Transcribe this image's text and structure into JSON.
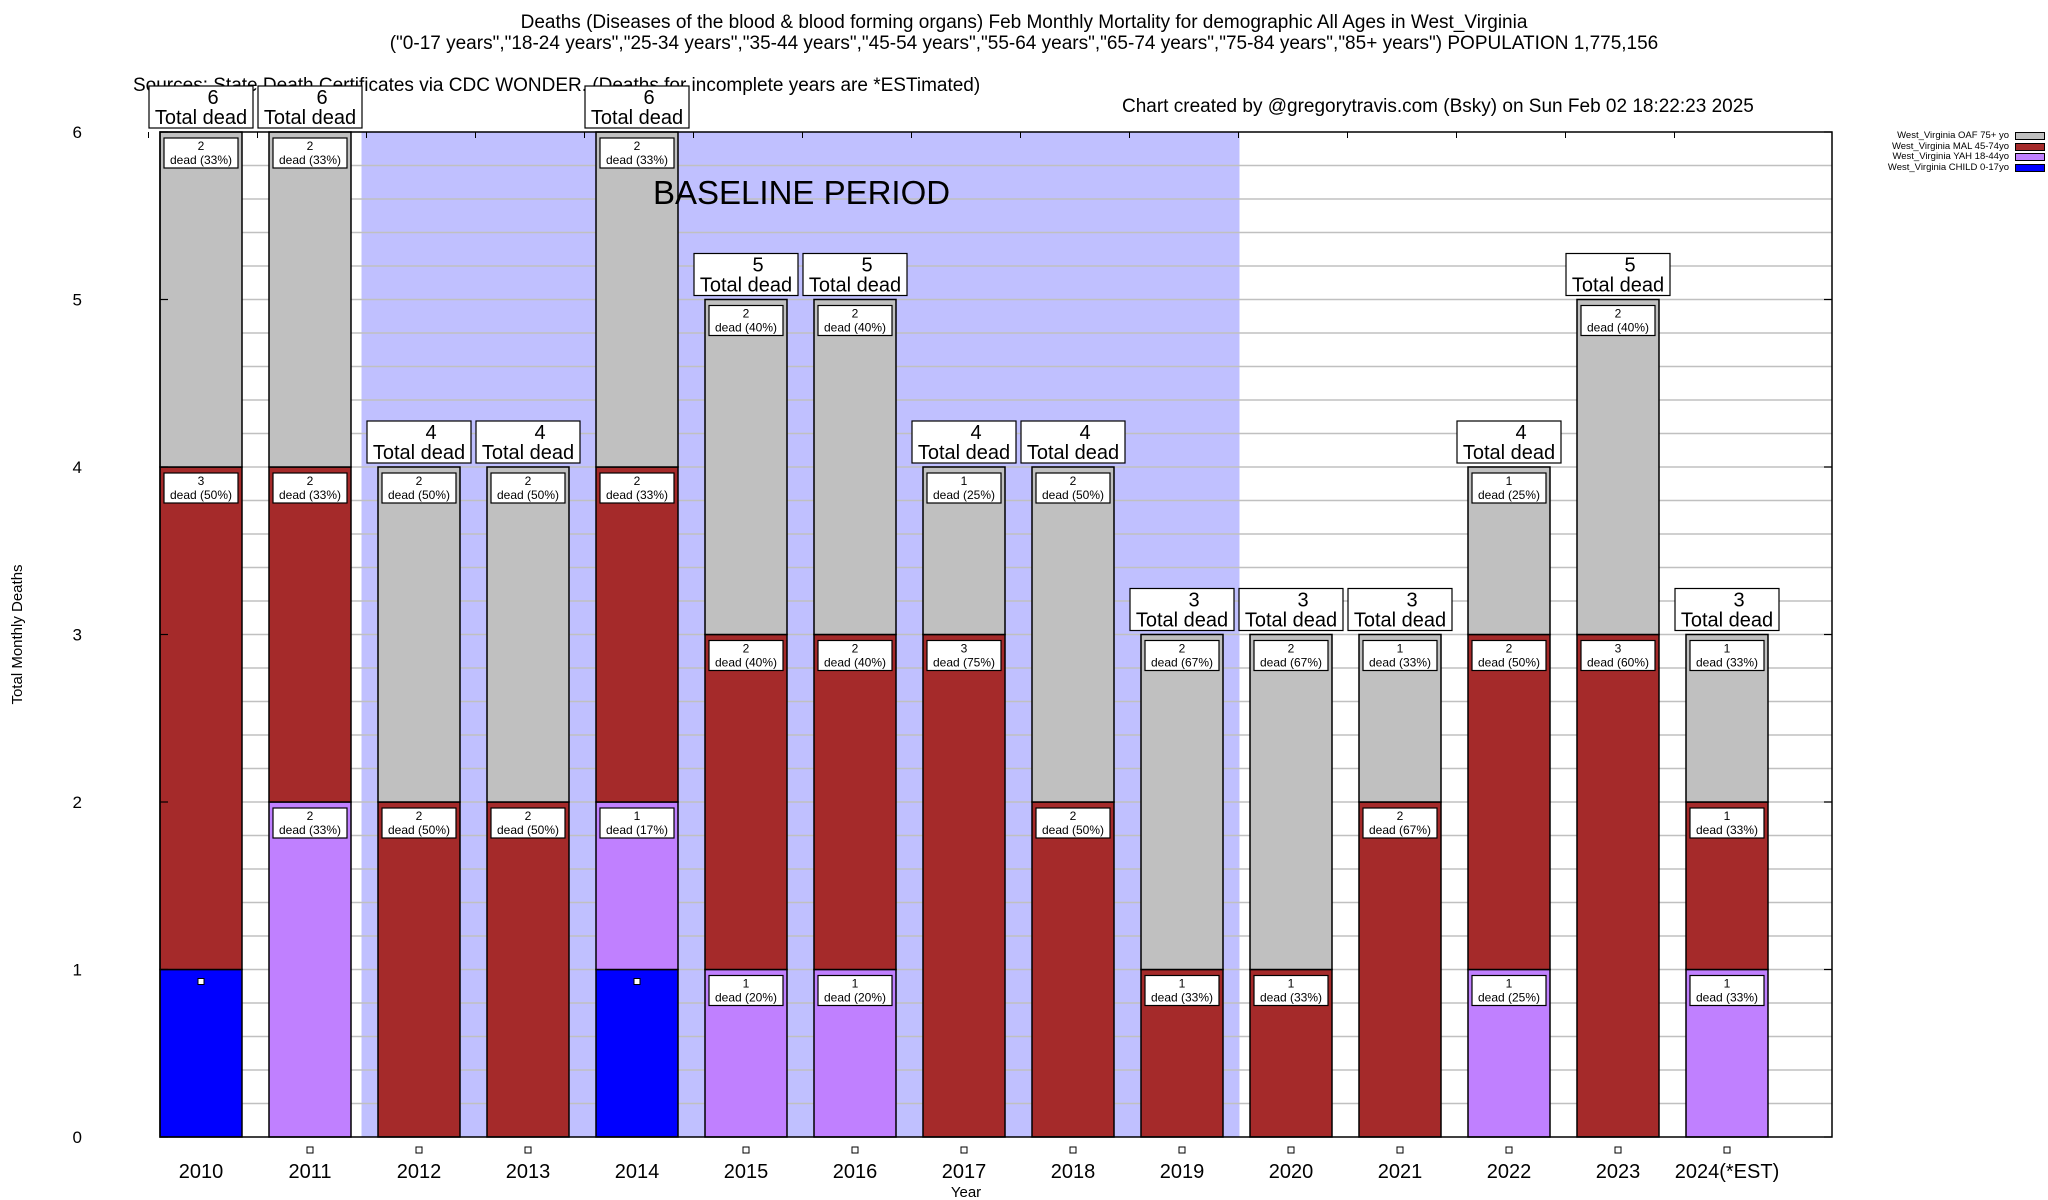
{
  "header": {
    "title": "Deaths (Diseases of the blood & blood forming organs) Feb Monthly Mortality for demographic All Ages in West_Virginia",
    "subtitle": "(\"0-17 years\",\"18-24 years\",\"25-34 years\",\"35-44 years\",\"45-54 years\",\"55-64 years\",\"65-74 years\",\"75-84 years\",\"85+ years\") POPULATION 1,775,156",
    "sources": "Sources: State Death Certificates via CDC WONDER. (Deaths for incomplete years are *ESTimated)",
    "credit": "Chart created by @gregorytravis.com (Bsky) on Sun Feb 02 18:22:23 2025"
  },
  "chart_data": {
    "type": "bar",
    "stacked": true,
    "title": "Deaths (Diseases of the blood & blood forming organs) Feb Monthly Mortality for demographic All Ages in West_Virginia",
    "xlabel": "Year",
    "ylabel": "Total Monthly Deaths",
    "ylim": [
      0,
      6
    ],
    "yticks": [
      0,
      1,
      2,
      3,
      4,
      5,
      6
    ],
    "minor_tick_step": 0.2,
    "grid": true,
    "legend_position": "top-right (outside plot)",
    "annotation": "BASELINE PERIOD",
    "baseline_period": {
      "from": "2012",
      "to": "2019"
    },
    "baseline_color": "#c0c0ff",
    "total_label_suffix": "Total dead",
    "segment_label_word": "dead",
    "categories": [
      "2010",
      "2011",
      "2012",
      "2013",
      "2014",
      "2015",
      "2016",
      "2017",
      "2018",
      "2019",
      "2020",
      "2021",
      "2022",
      "2023",
      "2024(*EST)"
    ],
    "series": [
      {
        "name": "West_Virginia CHILD 0-17yo",
        "color": "#0000ff",
        "values": [
          1,
          0,
          0,
          0,
          1,
          0,
          0,
          0,
          0,
          0,
          0,
          0,
          0,
          0,
          0
        ],
        "pct": [
          null,
          null,
          null,
          null,
          null,
          null,
          null,
          null,
          null,
          null,
          null,
          null,
          null,
          null,
          null
        ]
      },
      {
        "name": "West_Virginia YAH 18-44yo",
        "color": "#c080ff",
        "values": [
          0,
          2,
          0,
          0,
          1,
          1,
          1,
          0,
          0,
          0,
          0,
          0,
          1,
          0,
          1
        ],
        "pct": [
          null,
          "33%",
          null,
          null,
          "17%",
          "20%",
          "20%",
          null,
          null,
          null,
          null,
          null,
          "25%",
          null,
          "33%"
        ]
      },
      {
        "name": "West_Virginia MAL 45-74yo",
        "color": "#a52a2a",
        "values": [
          3,
          2,
          2,
          2,
          2,
          2,
          2,
          3,
          2,
          1,
          1,
          2,
          2,
          3,
          1
        ],
        "pct": [
          "50%",
          "33%",
          "50%",
          "50%",
          "33%",
          "40%",
          "40%",
          "75%",
          "50%",
          "33%",
          "33%",
          "67%",
          "50%",
          "60%",
          "33%"
        ]
      },
      {
        "name": "West_Virginia OAF 75+ yo",
        "color": "#c0c0c0",
        "values": [
          2,
          2,
          2,
          2,
          2,
          2,
          2,
          1,
          2,
          2,
          2,
          1,
          1,
          2,
          1
        ],
        "pct": [
          "33%",
          "33%",
          "50%",
          "50%",
          "33%",
          "40%",
          "40%",
          "25%",
          "50%",
          "67%",
          "67%",
          "33%",
          "25%",
          "40%",
          "33%"
        ]
      }
    ],
    "totals": [
      6,
      6,
      4,
      4,
      6,
      5,
      5,
      4,
      4,
      3,
      3,
      3,
      4,
      5,
      3
    ]
  },
  "legend": {
    "items": [
      {
        "label": "West_Virginia OAF 75+ yo",
        "color": "#c0c0c0"
      },
      {
        "label": "West_Virginia MAL 45-74yo",
        "color": "#a52a2a"
      },
      {
        "label": "West_Virginia YAH 18-44yo",
        "color": "#c080ff"
      },
      {
        "label": "West_Virginia CHILD 0-17yo",
        "color": "#0000ff"
      }
    ]
  }
}
